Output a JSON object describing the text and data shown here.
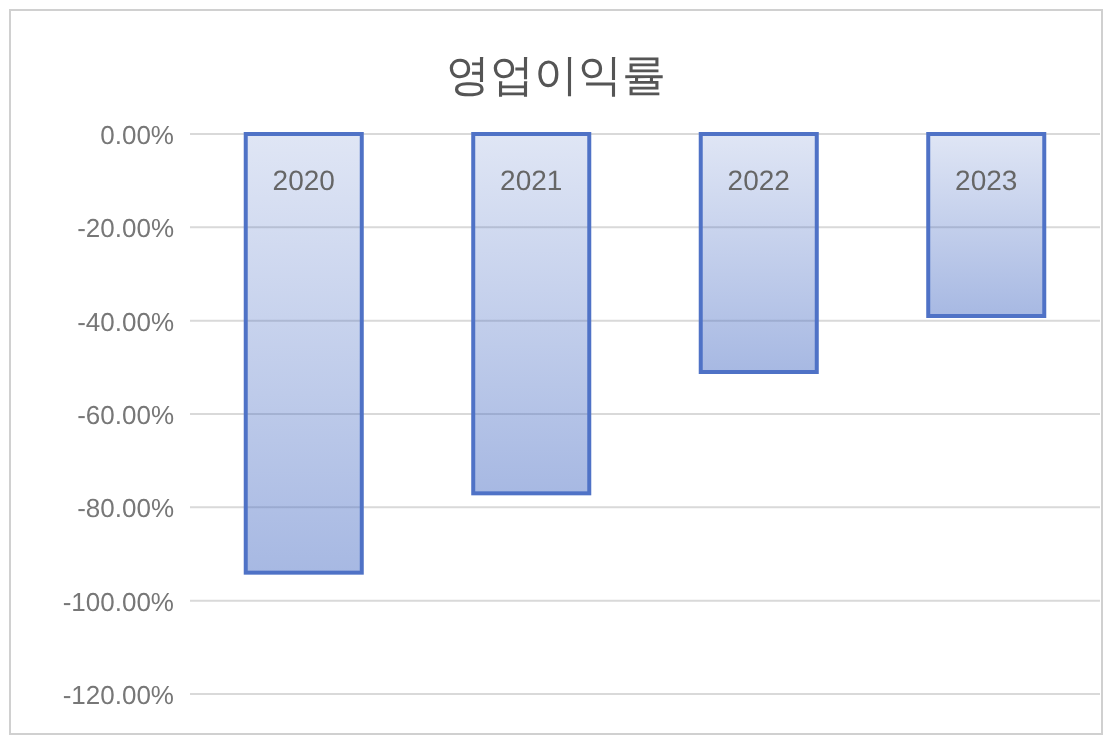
{
  "chart_data": {
    "type": "bar",
    "title": "영업이익률",
    "categories": [
      "2020",
      "2021",
      "2022",
      "2023"
    ],
    "values": [
      -94,
      -77,
      -51,
      -39
    ],
    "color": "#4f72c6",
    "ylim": [
      -120,
      0
    ],
    "yticks": [
      {
        "value": 0,
        "label": "0.00%"
      },
      {
        "value": -20,
        "label": "-20.00%"
      },
      {
        "value": -40,
        "label": "-40.00%"
      },
      {
        "value": -60,
        "label": "-60.00%"
      },
      {
        "value": -80,
        "label": "-80.00%"
      },
      {
        "value": -100,
        "label": "-100.00%"
      },
      {
        "value": -120,
        "label": "-120.00%"
      }
    ],
    "grid": "y"
  }
}
